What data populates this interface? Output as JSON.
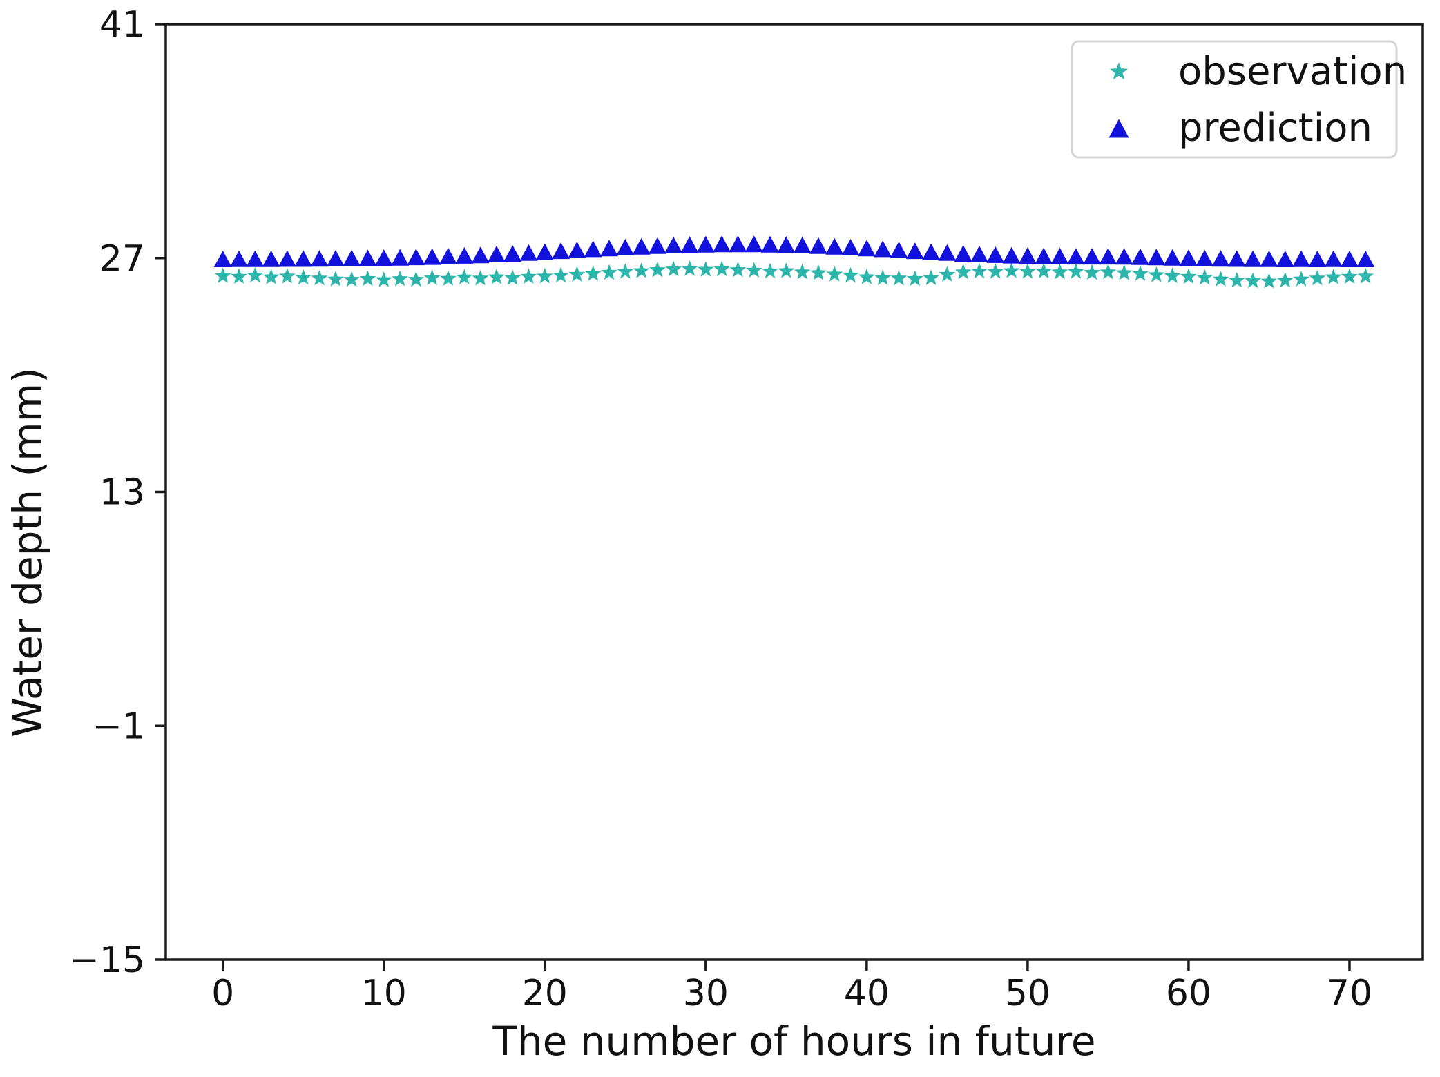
{
  "chart_data": {
    "type": "scatter",
    "title": "",
    "xlabel": "The number of hours in future",
    "ylabel": "Water depth (mm)",
    "xlim": [
      -3.55,
      74.55
    ],
    "ylim": [
      -15,
      41
    ],
    "xticks": [
      0,
      10,
      20,
      30,
      40,
      50,
      60,
      70
    ],
    "yticks": [
      41,
      27,
      13,
      -1,
      -15
    ],
    "grid": false,
    "legend": {
      "position": "upper right",
      "entries": [
        {
          "label": "observation",
          "marker": "star",
          "color": "#2cb5ab"
        },
        {
          "label": "prediction",
          "marker": "triangle-up",
          "color": "#1212dc"
        }
      ]
    },
    "x": [
      0,
      1,
      2,
      3,
      4,
      5,
      6,
      7,
      8,
      9,
      10,
      11,
      12,
      13,
      14,
      15,
      16,
      17,
      18,
      19,
      20,
      21,
      22,
      23,
      24,
      25,
      26,
      27,
      28,
      29,
      30,
      31,
      32,
      33,
      34,
      35,
      36,
      37,
      38,
      39,
      40,
      41,
      42,
      43,
      44,
      45,
      46,
      47,
      48,
      49,
      50,
      51,
      52,
      53,
      54,
      55,
      56,
      57,
      58,
      59,
      60,
      61,
      62,
      63,
      64,
      65,
      66,
      67,
      68,
      69,
      70,
      71
    ],
    "series": [
      {
        "name": "observation",
        "marker": "star",
        "color": "#2cb5ab",
        "values": [
          25.92,
          25.88,
          25.95,
          25.85,
          25.9,
          25.82,
          25.78,
          25.72,
          25.7,
          25.75,
          25.68,
          25.74,
          25.7,
          25.8,
          25.76,
          25.84,
          25.78,
          25.85,
          25.8,
          25.88,
          25.9,
          25.95,
          26.0,
          26.05,
          26.12,
          26.18,
          26.22,
          26.28,
          26.32,
          26.35,
          26.3,
          26.33,
          26.28,
          26.25,
          26.2,
          26.22,
          26.15,
          26.1,
          26.02,
          25.95,
          25.85,
          25.8,
          25.78,
          25.75,
          25.8,
          26.0,
          26.15,
          26.2,
          26.18,
          26.22,
          26.18,
          26.2,
          26.15,
          26.18,
          26.12,
          26.15,
          26.1,
          26.05,
          25.98,
          25.92,
          25.88,
          25.82,
          25.72,
          25.65,
          25.62,
          25.6,
          25.65,
          25.72,
          25.78,
          25.85,
          25.88,
          25.9
        ]
      },
      {
        "name": "prediction",
        "marker": "triangle-up",
        "color": "#1212dc",
        "values": [
          26.95,
          26.96,
          26.96,
          26.96,
          26.97,
          26.97,
          26.98,
          26.99,
          27.0,
          27.01,
          27.03,
          27.04,
          27.07,
          27.09,
          27.12,
          27.16,
          27.19,
          27.24,
          27.28,
          27.33,
          27.38,
          27.44,
          27.49,
          27.55,
          27.6,
          27.65,
          27.7,
          27.74,
          27.78,
          27.81,
          27.83,
          27.85,
          27.85,
          27.85,
          27.83,
          27.81,
          27.78,
          27.74,
          27.7,
          27.65,
          27.6,
          27.55,
          27.49,
          27.44,
          27.38,
          27.33,
          27.28,
          27.24,
          27.2,
          27.17,
          27.15,
          27.13,
          27.12,
          27.11,
          27.11,
          27.11,
          27.1,
          27.08,
          27.06,
          27.04,
          27.02,
          27.0,
          26.98,
          26.97,
          26.96,
          26.96,
          26.95,
          26.96,
          26.95,
          26.96,
          26.95,
          26.95
        ]
      }
    ]
  }
}
